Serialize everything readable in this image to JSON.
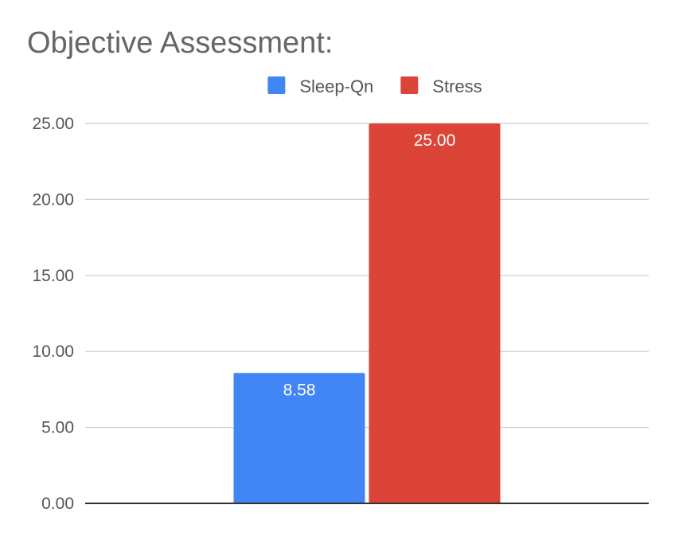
{
  "chart_data": {
    "type": "bar",
    "title": "Objective Assessment:",
    "categories": [
      ""
    ],
    "series": [
      {
        "name": "Sleep-Qn",
        "values": [
          8.58
        ],
        "color": "#4285f4"
      },
      {
        "name": "Stress",
        "values": [
          25.0
        ],
        "color": "#db4437"
      }
    ],
    "data_labels": [
      "8.58",
      "25.00"
    ],
    "ylim": [
      0,
      25
    ],
    "yticks": [
      0,
      5,
      10,
      15,
      20,
      25
    ],
    "ytick_labels": [
      "0.00",
      "5.00",
      "10.00",
      "15.00",
      "20.00",
      "25.00"
    ],
    "xlabel": "",
    "ylabel": "",
    "grid": true,
    "legend_position": "top"
  }
}
